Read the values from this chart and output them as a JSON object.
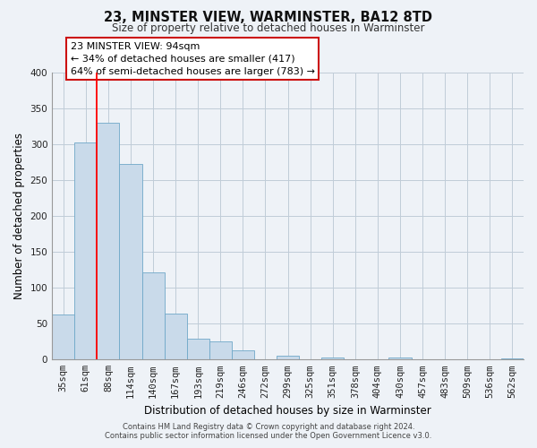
{
  "title": "23, MINSTER VIEW, WARMINSTER, BA12 8TD",
  "subtitle": "Size of property relative to detached houses in Warminster",
  "xlabel": "Distribution of detached houses by size in Warminster",
  "ylabel": "Number of detached properties",
  "bar_labels": [
    "35sqm",
    "61sqm",
    "88sqm",
    "114sqm",
    "140sqm",
    "167sqm",
    "193sqm",
    "219sqm",
    "246sqm",
    "272sqm",
    "299sqm",
    "325sqm",
    "351sqm",
    "378sqm",
    "404sqm",
    "430sqm",
    "457sqm",
    "483sqm",
    "509sqm",
    "536sqm",
    "562sqm"
  ],
  "bar_values": [
    63,
    302,
    330,
    272,
    121,
    64,
    29,
    25,
    13,
    0,
    5,
    0,
    3,
    0,
    0,
    3,
    0,
    0,
    0,
    0,
    2
  ],
  "bar_face_color": "#c9daea",
  "bar_edge_color": "#6fa8c8",
  "property_line_x": 1.5,
  "annotation_title": "23 MINSTER VIEW: 94sqm",
  "annotation_line1": "← 34% of detached houses are smaller (417)",
  "annotation_line2": "64% of semi-detached houses are larger (783) →",
  "ylim": [
    0,
    400
  ],
  "yticks": [
    0,
    50,
    100,
    150,
    200,
    250,
    300,
    350,
    400
  ],
  "footer_line1": "Contains HM Land Registry data © Crown copyright and database right 2024.",
  "footer_line2": "Contains public sector information licensed under the Open Government Licence v3.0.",
  "bg_color": "#eef2f7",
  "plot_bg_color": "#eef2f7",
  "grid_color": "#c0ccd8"
}
